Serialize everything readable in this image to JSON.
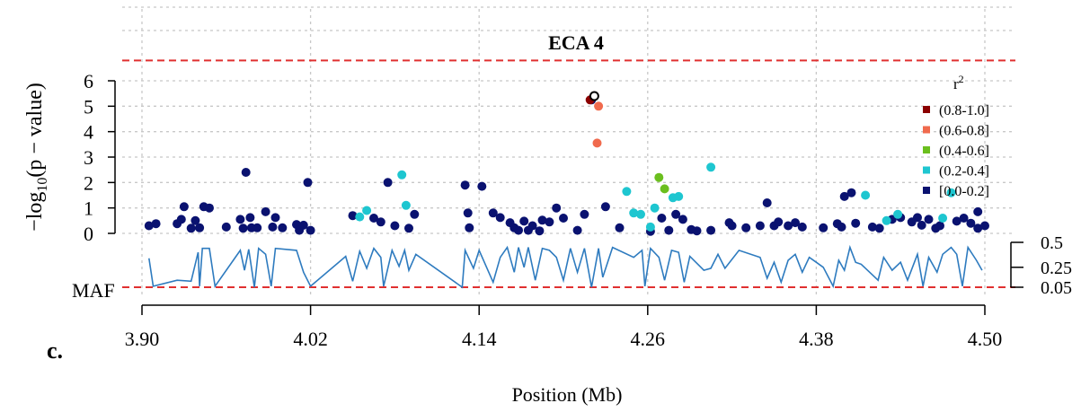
{
  "chart_data": {
    "type": "scatter",
    "title": "ECA 4",
    "xlabel": "Position (Mb)",
    "ylabel_base": "−log",
    "ylabel_sub": "10",
    "ylabel_rest": "(p − value)",
    "panel_label": "c.",
    "xlim": [
      3.895,
      4.515
    ],
    "ylim": [
      0,
      6.0
    ],
    "x_ticks": [
      3.9,
      4.02,
      4.14,
      4.26,
      4.38,
      4.5
    ],
    "x_tick_labels": [
      "3.90",
      "4.02",
      "4.14",
      "4.26",
      "4.38",
      "4.50"
    ],
    "y_ticks": [
      0,
      1,
      2,
      3,
      4,
      5,
      6
    ],
    "y_tick_labels": [
      "0",
      "1",
      "2",
      "3",
      "4",
      "5",
      "6"
    ],
    "grid": true,
    "significance_line": 6.8,
    "legend": {
      "title_base": "r",
      "title_sup": "2",
      "placement": "top-right",
      "entries": [
        {
          "label": "(0.8-1.0]",
          "color": "#8b0000"
        },
        {
          "label": "(0.6-0.8]",
          "color": "#f06a4d"
        },
        {
          "label": "(0.4-0.6]",
          "color": "#6bbf1e"
        },
        {
          "label": "(0.2-0.4]",
          "color": "#1ec6d0"
        },
        {
          "label": "[0.0-0.2]",
          "color": "#0a1270"
        }
      ]
    },
    "lead_snp": {
      "x": 4.222,
      "y": 5.4
    },
    "series": [
      {
        "bin": 4,
        "points": [
          [
            3.905,
            0.3
          ],
          [
            3.91,
            0.38
          ],
          [
            3.925,
            0.38
          ],
          [
            3.928,
            0.55
          ],
          [
            3.93,
            1.05
          ],
          [
            3.935,
            0.2
          ],
          [
            3.938,
            0.5
          ],
          [
            3.941,
            0.22
          ],
          [
            3.944,
            1.05
          ],
          [
            3.948,
            1.0
          ],
          [
            3.96,
            0.25
          ],
          [
            3.97,
            0.55
          ],
          [
            3.972,
            0.2
          ],
          [
            3.974,
            2.4
          ],
          [
            3.977,
            0.62
          ],
          [
            3.978,
            0.22
          ],
          [
            3.982,
            0.22
          ],
          [
            3.988,
            0.85
          ],
          [
            3.993,
            0.25
          ],
          [
            3.995,
            0.62
          ],
          [
            4.0,
            0.22
          ],
          [
            4.01,
            0.35
          ],
          [
            4.012,
            0.12
          ],
          [
            4.015,
            0.32
          ],
          [
            4.018,
            2.0
          ],
          [
            4.02,
            0.12
          ],
          [
            4.05,
            0.7
          ],
          [
            4.065,
            0.6
          ],
          [
            4.07,
            0.45
          ],
          [
            4.075,
            2.0
          ],
          [
            4.08,
            0.3
          ],
          [
            4.09,
            0.2
          ],
          [
            4.094,
            0.75
          ],
          [
            4.13,
            1.9
          ],
          [
            4.132,
            0.8
          ],
          [
            4.133,
            0.22
          ],
          [
            4.142,
            1.85
          ],
          [
            4.15,
            0.8
          ],
          [
            4.155,
            0.62
          ],
          [
            4.162,
            0.42
          ],
          [
            4.165,
            0.22
          ],
          [
            4.168,
            0.12
          ],
          [
            4.172,
            0.48
          ],
          [
            4.175,
            0.12
          ],
          [
            4.178,
            0.3
          ],
          [
            4.183,
            0.1
          ],
          [
            4.185,
            0.52
          ],
          [
            4.19,
            0.45
          ],
          [
            4.195,
            1.0
          ],
          [
            4.2,
            0.6
          ],
          [
            4.21,
            0.12
          ],
          [
            4.215,
            0.75
          ],
          [
            4.22,
            5.25
          ],
          [
            4.23,
            1.05
          ],
          [
            4.24,
            0.22
          ],
          [
            4.262,
            0.08
          ],
          [
            4.27,
            0.6
          ],
          [
            4.275,
            0.12
          ],
          [
            4.28,
            0.75
          ],
          [
            4.285,
            0.55
          ],
          [
            4.291,
            0.15
          ],
          [
            4.295,
            0.1
          ],
          [
            4.305,
            0.12
          ],
          [
            4.318,
            0.42
          ],
          [
            4.32,
            0.3
          ],
          [
            4.33,
            0.22
          ],
          [
            4.34,
            0.3
          ],
          [
            4.345,
            1.2
          ],
          [
            4.35,
            0.3
          ],
          [
            4.353,
            0.45
          ],
          [
            4.36,
            0.3
          ],
          [
            4.365,
            0.42
          ],
          [
            4.37,
            0.25
          ],
          [
            4.385,
            0.22
          ],
          [
            4.395,
            0.38
          ],
          [
            4.398,
            0.25
          ],
          [
            4.4,
            1.45
          ],
          [
            4.405,
            1.6
          ],
          [
            4.408,
            0.4
          ],
          [
            4.42,
            0.25
          ],
          [
            4.425,
            0.2
          ],
          [
            4.434,
            0.55
          ],
          [
            4.44,
            0.62
          ],
          [
            4.448,
            0.45
          ],
          [
            4.452,
            0.62
          ],
          [
            4.455,
            0.32
          ],
          [
            4.46,
            0.55
          ],
          [
            4.465,
            0.2
          ],
          [
            4.468,
            0.3
          ],
          [
            4.48,
            0.48
          ],
          [
            4.485,
            0.6
          ],
          [
            4.49,
            0.4
          ],
          [
            4.495,
            0.85
          ],
          [
            4.5,
            0.3
          ],
          [
            4.495,
            0.2
          ]
        ]
      },
      {
        "bin": 3,
        "points": [
          [
            4.055,
            0.65
          ],
          [
            4.06,
            0.9
          ],
          [
            4.085,
            2.3
          ],
          [
            4.088,
            1.1
          ],
          [
            4.245,
            1.65
          ],
          [
            4.25,
            0.8
          ],
          [
            4.255,
            0.75
          ],
          [
            4.262,
            0.25
          ],
          [
            4.265,
            1.0
          ],
          [
            4.278,
            1.4
          ],
          [
            4.282,
            1.45
          ],
          [
            4.305,
            2.6
          ],
          [
            4.415,
            1.5
          ],
          [
            4.43,
            0.5
          ],
          [
            4.438,
            0.75
          ],
          [
            4.47,
            0.6
          ],
          [
            4.476,
            1.6
          ]
        ]
      },
      {
        "bin": 2,
        "points": [
          [
            4.268,
            2.2
          ],
          [
            4.272,
            1.75
          ]
        ]
      },
      {
        "bin": 1,
        "points": [
          [
            4.225,
            5.0
          ],
          [
            4.224,
            3.55
          ]
        ]
      },
      {
        "bin": 0,
        "points": [
          [
            4.219,
            5.25
          ]
        ]
      }
    ],
    "maf": {
      "label": "MAF",
      "axis_ticks": [
        0.05,
        0.25,
        0.5
      ],
      "axis_tick_labels": [
        "0.05",
        "0.25",
        "0.5"
      ],
      "ylim": [
        0.05,
        0.5
      ],
      "threshold": 0.05,
      "points": [
        [
          3.905,
          0.34
        ],
        [
          3.908,
          0.06
        ],
        [
          3.925,
          0.12
        ],
        [
          3.935,
          0.11
        ],
        [
          3.94,
          0.4
        ],
        [
          3.941,
          0.06
        ],
        [
          3.943,
          0.44
        ],
        [
          3.948,
          0.44
        ],
        [
          3.952,
          0.06
        ],
        [
          3.965,
          0.32
        ],
        [
          3.97,
          0.42
        ],
        [
          3.973,
          0.22
        ],
        [
          3.976,
          0.43
        ],
        [
          3.98,
          0.05
        ],
        [
          3.983,
          0.44
        ],
        [
          3.988,
          0.38
        ],
        [
          3.992,
          0.06
        ],
        [
          3.995,
          0.44
        ],
        [
          4.01,
          0.42
        ],
        [
          4.015,
          0.2
        ],
        [
          4.02,
          0.06
        ],
        [
          4.045,
          0.36
        ],
        [
          4.05,
          0.11
        ],
        [
          4.055,
          0.41
        ],
        [
          4.06,
          0.24
        ],
        [
          4.065,
          0.44
        ],
        [
          4.07,
          0.35
        ],
        [
          4.072,
          0.06
        ],
        [
          4.078,
          0.42
        ],
        [
          4.083,
          0.26
        ],
        [
          4.087,
          0.42
        ],
        [
          4.09,
          0.22
        ],
        [
          4.095,
          0.38
        ],
        [
          4.128,
          0.05
        ],
        [
          4.13,
          0.42
        ],
        [
          4.136,
          0.24
        ],
        [
          4.14,
          0.42
        ],
        [
          4.15,
          0.1
        ],
        [
          4.155,
          0.35
        ],
        [
          4.16,
          0.45
        ],
        [
          4.165,
          0.2
        ],
        [
          4.168,
          0.45
        ],
        [
          4.172,
          0.25
        ],
        [
          4.175,
          0.45
        ],
        [
          4.18,
          0.12
        ],
        [
          4.185,
          0.44
        ],
        [
          4.19,
          0.42
        ],
        [
          4.195,
          0.35
        ],
        [
          4.2,
          0.12
        ],
        [
          4.205,
          0.44
        ],
        [
          4.21,
          0.2
        ],
        [
          4.215,
          0.44
        ],
        [
          4.22,
          0.05
        ],
        [
          4.225,
          0.44
        ],
        [
          4.228,
          0.15
        ],
        [
          4.235,
          0.45
        ],
        [
          4.25,
          0.35
        ],
        [
          4.256,
          0.42
        ],
        [
          4.258,
          0.06
        ],
        [
          4.262,
          0.44
        ],
        [
          4.268,
          0.35
        ],
        [
          4.272,
          0.12
        ],
        [
          4.277,
          0.42
        ],
        [
          4.282,
          0.4
        ],
        [
          4.286,
          0.1
        ],
        [
          4.29,
          0.36
        ],
        [
          4.3,
          0.22
        ],
        [
          4.305,
          0.24
        ],
        [
          4.31,
          0.38
        ],
        [
          4.315,
          0.24
        ],
        [
          4.325,
          0.42
        ],
        [
          4.34,
          0.35
        ],
        [
          4.345,
          0.14
        ],
        [
          4.35,
          0.3
        ],
        [
          4.355,
          0.1
        ],
        [
          4.36,
          0.32
        ],
        [
          4.365,
          0.38
        ],
        [
          4.37,
          0.2
        ],
        [
          4.375,
          0.35
        ],
        [
          4.38,
          0.3
        ],
        [
          4.385,
          0.25
        ],
        [
          4.392,
          0.06
        ],
        [
          4.396,
          0.32
        ],
        [
          4.4,
          0.22
        ],
        [
          4.404,
          0.45
        ],
        [
          4.408,
          0.3
        ],
        [
          4.412,
          0.28
        ],
        [
          4.418,
          0.2
        ],
        [
          4.424,
          0.12
        ],
        [
          4.428,
          0.35
        ],
        [
          4.434,
          0.22
        ],
        [
          4.44,
          0.3
        ],
        [
          4.445,
          0.12
        ],
        [
          4.452,
          0.38
        ],
        [
          4.456,
          0.06
        ],
        [
          4.46,
          0.35
        ],
        [
          4.466,
          0.2
        ],
        [
          4.47,
          0.38
        ],
        [
          4.476,
          0.45
        ],
        [
          4.48,
          0.38
        ],
        [
          4.484,
          0.06
        ],
        [
          4.488,
          0.45
        ],
        [
          4.494,
          0.32
        ],
        [
          4.498,
          0.22
        ]
      ]
    }
  }
}
